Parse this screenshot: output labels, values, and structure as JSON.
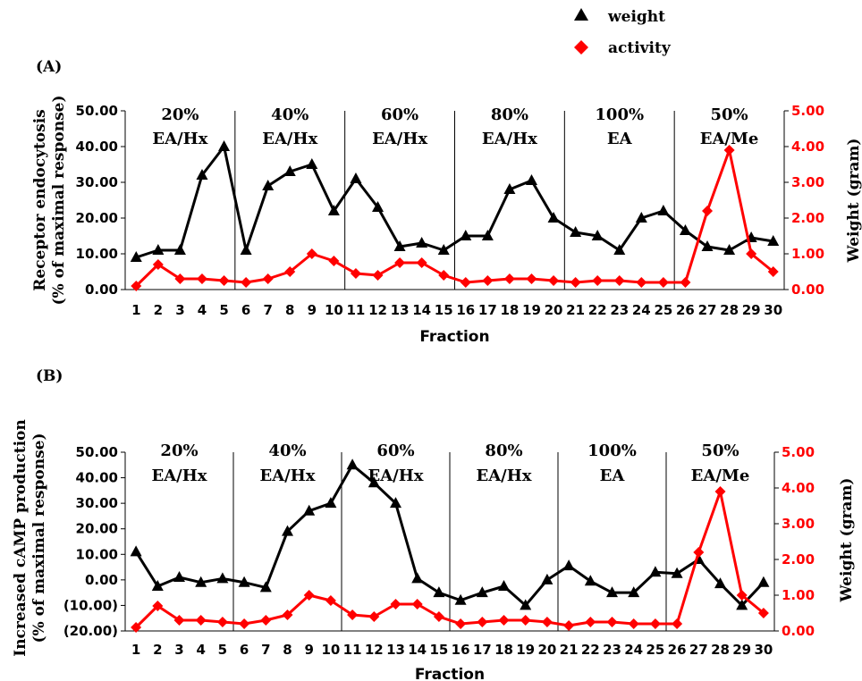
{
  "legend": [
    {
      "label": "weight",
      "marker": "triangle",
      "color": "#000000"
    },
    {
      "label": "activity",
      "marker": "diamond",
      "color": "#ff0000"
    }
  ],
  "chart_data": [
    {
      "panel_label": "(A)",
      "type": "line",
      "x": [
        1,
        2,
        3,
        4,
        5,
        6,
        7,
        8,
        9,
        10,
        11,
        12,
        13,
        14,
        15,
        16,
        17,
        18,
        19,
        20,
        21,
        22,
        23,
        24,
        25,
        26,
        27,
        28,
        29,
        30
      ],
      "xlabel": "Fraction",
      "ylabel_left": [
        "Receptor endocytosis",
        "(% of maximal response)"
      ],
      "ylabel_right": "Weight (gram)",
      "left_ticks": [
        "0.00",
        "10.00",
        "20.00",
        "30.00",
        "40.00",
        "50.00"
      ],
      "right_ticks": [
        "0.00",
        "1.00",
        "2.00",
        "3.00",
        "4.00",
        "5.00"
      ],
      "ylim_left": [
        0,
        50
      ],
      "ylim_right": [
        0,
        5
      ],
      "segments": [
        {
          "line1": "20%",
          "line2": "EA/Hx",
          "from": 1,
          "to": 5
        },
        {
          "line1": "40%",
          "line2": "EA/Hx",
          "from": 6,
          "to": 10
        },
        {
          "line1": "60%",
          "line2": "EA/Hx",
          "from": 11,
          "to": 15
        },
        {
          "line1": "80%",
          "line2": "EA/Hx",
          "from": 16,
          "to": 20
        },
        {
          "line1": "100%",
          "line2": "EA",
          "from": 21,
          "to": 25
        },
        {
          "line1": "50%",
          "line2": "EA/Me",
          "from": 26,
          "to": 30
        }
      ],
      "series": [
        {
          "name": "weight",
          "axis": "left",
          "color": "#000000",
          "marker": "triangle",
          "values": [
            9,
            11,
            11,
            32,
            40,
            11,
            29,
            33,
            35,
            22,
            31,
            23,
            12,
            13,
            11,
            15,
            15,
            28,
            30.5,
            20,
            16,
            15,
            11,
            20,
            22,
            16.5,
            12,
            11,
            14.5,
            13.5
          ]
        },
        {
          "name": "activity",
          "axis": "right",
          "color": "#ff0000",
          "marker": "diamond",
          "values": [
            0.1,
            0.7,
            0.3,
            0.3,
            0.25,
            0.2,
            0.3,
            0.5,
            1.0,
            0.8,
            0.45,
            0.4,
            0.75,
            0.75,
            0.4,
            0.2,
            0.25,
            0.3,
            0.3,
            0.25,
            0.2,
            0.25,
            0.25,
            0.2,
            0.2,
            0.2,
            2.2,
            3.9,
            1.0,
            0.5
          ]
        }
      ]
    },
    {
      "panel_label": "(B)",
      "type": "line",
      "x": [
        1,
        2,
        3,
        4,
        5,
        6,
        7,
        8,
        9,
        10,
        11,
        12,
        13,
        14,
        15,
        16,
        17,
        18,
        19,
        20,
        21,
        22,
        23,
        24,
        25,
        26,
        27,
        28,
        29,
        30
      ],
      "xlabel": "Fraction",
      "ylabel_left": [
        "Increased cAMP production",
        "(% of maximal response)"
      ],
      "ylabel_right": "Weight (gram)",
      "left_ticks": [
        "(20.00)",
        "(10.00)",
        "0.00",
        "10.00",
        "20.00",
        "30.00",
        "40.00",
        "50.00"
      ],
      "right_ticks": [
        "0.00",
        "1.00",
        "2.00",
        "3.00",
        "4.00",
        "5.00"
      ],
      "ylim_left": [
        -20,
        50
      ],
      "ylim_right": [
        0,
        5
      ],
      "segments": [
        {
          "line1": "20%",
          "line2": "EA/Hx",
          "from": 1,
          "to": 5
        },
        {
          "line1": "40%",
          "line2": "EA/Hx",
          "from": 6,
          "to": 10
        },
        {
          "line1": "60%",
          "line2": "EA/Hx",
          "from": 11,
          "to": 15
        },
        {
          "line1": "80%",
          "line2": "EA/Hx",
          "from": 16,
          "to": 20
        },
        {
          "line1": "100%",
          "line2": "EA",
          "from": 21,
          "to": 25
        },
        {
          "line1": "50%",
          "line2": "EA/Me",
          "from": 26,
          "to": 30
        }
      ],
      "series": [
        {
          "name": "weight",
          "axis": "left",
          "color": "#000000",
          "marker": "triangle",
          "values": [
            11,
            -2.5,
            1,
            -1,
            0.5,
            -1,
            -3,
            19,
            27,
            30,
            45,
            38,
            30,
            0.5,
            -5,
            -8,
            -5,
            -2.5,
            -10,
            0,
            5.5,
            -0.5,
            -5,
            -5,
            3,
            2.5,
            8,
            -1.5,
            -10,
            -1
          ]
        },
        {
          "name": "activity",
          "axis": "right",
          "color": "#ff0000",
          "marker": "diamond",
          "values": [
            0.1,
            0.7,
            0.3,
            0.3,
            0.25,
            0.2,
            0.3,
            0.45,
            1.0,
            0.85,
            0.45,
            0.4,
            0.75,
            0.75,
            0.4,
            0.2,
            0.25,
            0.3,
            0.3,
            0.25,
            0.15,
            0.25,
            0.25,
            0.2,
            0.2,
            0.2,
            2.2,
            3.9,
            1.0,
            0.5
          ]
        }
      ]
    }
  ]
}
